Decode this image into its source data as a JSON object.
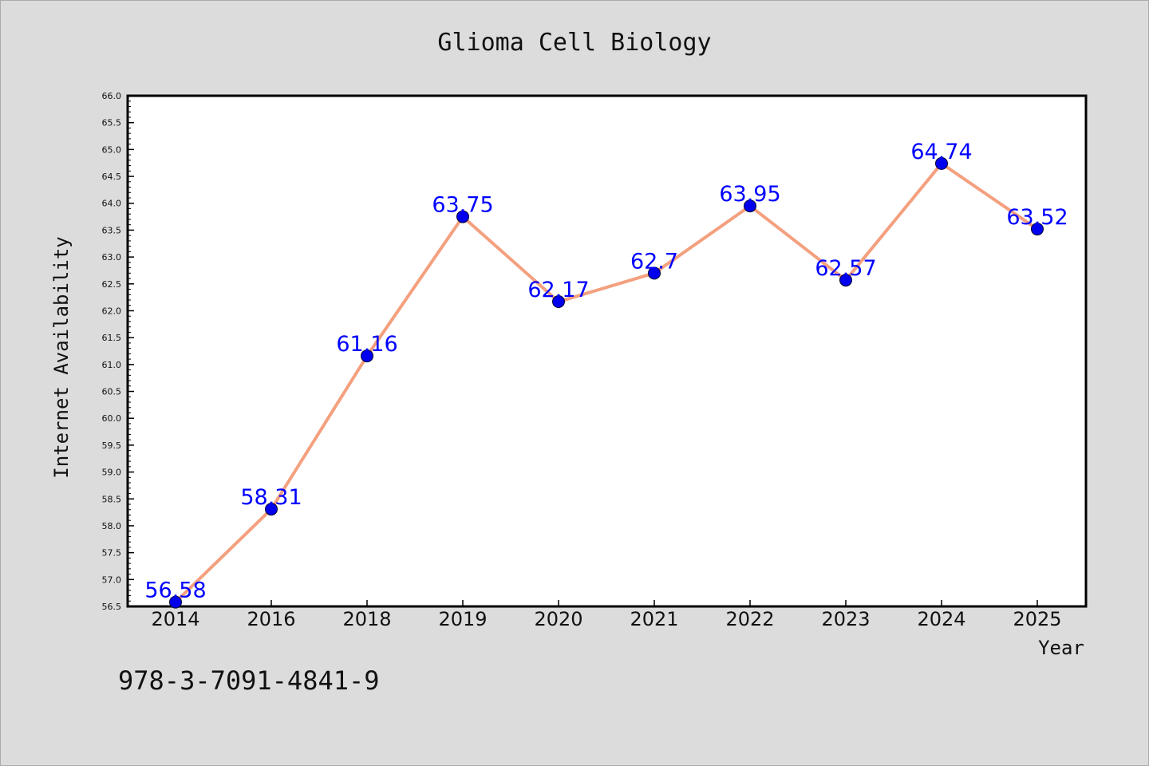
{
  "chart_data": {
    "type": "line",
    "title": "Glioma Cell Biology",
    "xlabel": "Year",
    "ylabel": "Internet Availability",
    "categories": [
      "2014",
      "2016",
      "2018",
      "2019",
      "2020",
      "2021",
      "2022",
      "2023",
      "2024",
      "2025"
    ],
    "series": [
      {
        "values": [
          56.58,
          58.31,
          61.16,
          63.75,
          62.17,
          62.7,
          63.95,
          62.57,
          64.74,
          63.52
        ],
        "labels": [
          "56.58",
          "58.31",
          "61.16",
          "63.75",
          "62.17",
          "62.7",
          "63.95",
          "62.57",
          "64.74",
          "63.52"
        ],
        "line_color": "#f4a07f",
        "marker_color": "#0000ee",
        "label_color": "#0000ff"
      }
    ],
    "ylim": [
      56.5,
      66.0
    ],
    "yticks": [
      "56.5",
      "57.0",
      "57.5",
      "58.0",
      "58.5",
      "59.0",
      "59.5",
      "60.0",
      "60.5",
      "61.0",
      "61.5",
      "62.0",
      "62.5",
      "63.0",
      "63.5",
      "64.0",
      "64.5",
      "65.0",
      "65.5",
      "66.0"
    ],
    "grid": false,
    "legend": "none",
    "background": "#dcdcdc",
    "plot_background": "#ffffff"
  },
  "footer": {
    "text": "978-3-7091-4841-9"
  }
}
